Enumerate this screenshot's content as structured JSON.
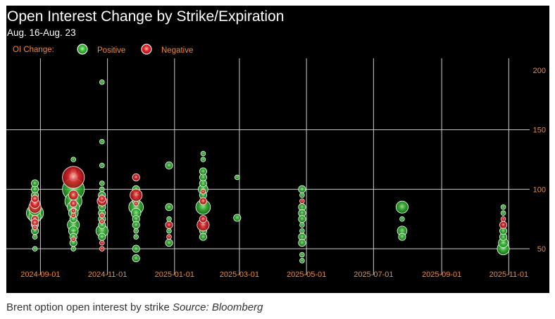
{
  "caption": {
    "text": "Brent option open interest by strike",
    "source": "Source: Bloomberg"
  },
  "chart_data": {
    "type": "scatter",
    "title": "Open Interest Change by Strike/Expiration",
    "subtitle": "Aug. 16-Aug. 23",
    "legend": {
      "label": "OI Change:",
      "placement": "top-left",
      "entries": [
        {
          "name": "Positive",
          "color": "#3fbf3f"
        },
        {
          "name": "Negative",
          "color": "#e8282e"
        }
      ]
    },
    "x_axis": {
      "type": "date",
      "ticks": [
        "2024-09-01",
        "2024-11-01",
        "2025-01-01",
        "2025-03-01",
        "2025-05-01",
        "2025-07-01",
        "2025-09-01",
        "2025-11-01"
      ],
      "range": [
        "2024-08-01",
        "2025-11-20"
      ]
    },
    "y_axis": {
      "ticks": [
        50,
        100,
        150,
        200
      ],
      "range": [
        27,
        210
      ],
      "position": "right"
    },
    "grid": true,
    "colors": {
      "background": "#000000",
      "grid": "#cccccc",
      "labels": "#f08a3c"
    },
    "series": [
      {
        "name": "Positive",
        "points": [
          {
            "x": "2024-08-27",
            "y": 80,
            "size": 3
          },
          {
            "x": "2024-08-27",
            "y": 77,
            "size": 2
          },
          {
            "x": "2024-08-27",
            "y": 83,
            "size": 2
          },
          {
            "x": "2024-08-27",
            "y": 90,
            "size": 1
          },
          {
            "x": "2024-08-27",
            "y": 95,
            "size": 1
          },
          {
            "x": "2024-08-27",
            "y": 100,
            "size": 1
          },
          {
            "x": "2024-08-27",
            "y": 105,
            "size": 1
          },
          {
            "x": "2024-08-27",
            "y": 70,
            "size": 1
          },
          {
            "x": "2024-08-27",
            "y": 65,
            "size": 1
          },
          {
            "x": "2024-08-27",
            "y": 60,
            "size": 0.5
          },
          {
            "x": "2024-08-27",
            "y": 50,
            "size": 0.5
          },
          {
            "x": "2024-10-01",
            "y": 100,
            "size": 4
          },
          {
            "x": "2024-10-01",
            "y": 90,
            "size": 3
          },
          {
            "x": "2024-10-01",
            "y": 85,
            "size": 2
          },
          {
            "x": "2024-10-01",
            "y": 80,
            "size": 1.5
          },
          {
            "x": "2024-10-01",
            "y": 75,
            "size": 1
          },
          {
            "x": "2024-10-01",
            "y": 70,
            "size": 2
          },
          {
            "x": "2024-10-01",
            "y": 65,
            "size": 1.5
          },
          {
            "x": "2024-10-01",
            "y": 60,
            "size": 1
          },
          {
            "x": "2024-10-01",
            "y": 55,
            "size": 1
          },
          {
            "x": "2024-10-01",
            "y": 50,
            "size": 0.5
          },
          {
            "x": "2024-10-01",
            "y": 110,
            "size": 1
          },
          {
            "x": "2024-10-01",
            "y": 115,
            "size": 0.5
          },
          {
            "x": "2024-10-01",
            "y": 125,
            "size": 0.5
          },
          {
            "x": "2024-10-27",
            "y": 65,
            "size": 2
          },
          {
            "x": "2024-10-27",
            "y": 70,
            "size": 1
          },
          {
            "x": "2024-10-27",
            "y": 60,
            "size": 1
          },
          {
            "x": "2024-10-27",
            "y": 75,
            "size": 1
          },
          {
            "x": "2024-10-27",
            "y": 80,
            "size": 1
          },
          {
            "x": "2024-10-27",
            "y": 85,
            "size": 1
          },
          {
            "x": "2024-10-27",
            "y": 95,
            "size": 1
          },
          {
            "x": "2024-10-27",
            "y": 100,
            "size": 0.5
          },
          {
            "x": "2024-10-27",
            "y": 105,
            "size": 0.5
          },
          {
            "x": "2024-10-27",
            "y": 120,
            "size": 0.5
          },
          {
            "x": "2024-10-27",
            "y": 140,
            "size": 0.5
          },
          {
            "x": "2024-10-27",
            "y": 190,
            "size": 0.5
          },
          {
            "x": "2024-11-27",
            "y": 85,
            "size": 2.5
          },
          {
            "x": "2024-11-27",
            "y": 80,
            "size": 1.5
          },
          {
            "x": "2024-11-27",
            "y": 75,
            "size": 1
          },
          {
            "x": "2024-11-27",
            "y": 70,
            "size": 1
          },
          {
            "x": "2024-11-27",
            "y": 65,
            "size": 0.5
          },
          {
            "x": "2024-11-27",
            "y": 60,
            "size": 0.5
          },
          {
            "x": "2024-11-27",
            "y": 50,
            "size": 1
          },
          {
            "x": "2024-11-27",
            "y": 42,
            "size": 1
          },
          {
            "x": "2024-11-27",
            "y": 100,
            "size": 1
          },
          {
            "x": "2024-11-27",
            "y": 90,
            "size": 1
          },
          {
            "x": "2024-12-27",
            "y": 120,
            "size": 1
          },
          {
            "x": "2024-12-27",
            "y": 85,
            "size": 1
          },
          {
            "x": "2024-12-27",
            "y": 75,
            "size": 0.5
          },
          {
            "x": "2024-12-27",
            "y": 65,
            "size": 0.5
          },
          {
            "x": "2024-12-27",
            "y": 55,
            "size": 1
          },
          {
            "x": "2025-01-27",
            "y": 85,
            "size": 2.5
          },
          {
            "x": "2025-01-27",
            "y": 100,
            "size": 1.5
          },
          {
            "x": "2025-01-27",
            "y": 95,
            "size": 1
          },
          {
            "x": "2025-01-27",
            "y": 105,
            "size": 1
          },
          {
            "x": "2025-01-27",
            "y": 110,
            "size": 1
          },
          {
            "x": "2025-01-27",
            "y": 115,
            "size": 1
          },
          {
            "x": "2025-01-27",
            "y": 125,
            "size": 0.5
          },
          {
            "x": "2025-01-27",
            "y": 130,
            "size": 0.5
          },
          {
            "x": "2025-01-27",
            "y": 65,
            "size": 1
          },
          {
            "x": "2025-01-27",
            "y": 60,
            "size": 1
          },
          {
            "x": "2025-02-27",
            "y": 110,
            "size": 0.5
          },
          {
            "x": "2025-02-27",
            "y": 76,
            "size": 1
          },
          {
            "x": "2025-04-27",
            "y": 100,
            "size": 1
          },
          {
            "x": "2025-04-27",
            "y": 95,
            "size": 0.5
          },
          {
            "x": "2025-04-27",
            "y": 85,
            "size": 1
          },
          {
            "x": "2025-04-27",
            "y": 80,
            "size": 1
          },
          {
            "x": "2025-04-27",
            "y": 75,
            "size": 1
          },
          {
            "x": "2025-04-27",
            "y": 70,
            "size": 0.5
          },
          {
            "x": "2025-04-27",
            "y": 65,
            "size": 0.5
          },
          {
            "x": "2025-04-27",
            "y": 60,
            "size": 1
          },
          {
            "x": "2025-04-27",
            "y": 55,
            "size": 1
          },
          {
            "x": "2025-04-27",
            "y": 45,
            "size": 0.5
          },
          {
            "x": "2025-04-27",
            "y": 40,
            "size": 0.5
          },
          {
            "x": "2025-07-27",
            "y": 85,
            "size": 2
          },
          {
            "x": "2025-07-27",
            "y": 75,
            "size": 0.5
          },
          {
            "x": "2025-07-27",
            "y": 65,
            "size": 1.5
          },
          {
            "x": "2025-07-27",
            "y": 60,
            "size": 1
          },
          {
            "x": "2025-10-27",
            "y": 50,
            "size": 2
          },
          {
            "x": "2025-10-27",
            "y": 55,
            "size": 1.5
          },
          {
            "x": "2025-10-27",
            "y": 60,
            "size": 1
          },
          {
            "x": "2025-10-27",
            "y": 65,
            "size": 1
          },
          {
            "x": "2025-10-27",
            "y": 80,
            "size": 0.5
          },
          {
            "x": "2025-10-27",
            "y": 85,
            "size": 0.5
          }
        ]
      },
      {
        "name": "Negative",
        "points": [
          {
            "x": "2024-08-27",
            "y": 85,
            "size": 2
          },
          {
            "x": "2024-08-27",
            "y": 88,
            "size": 1.5
          },
          {
            "x": "2024-08-27",
            "y": 92,
            "size": 1
          },
          {
            "x": "2024-08-27",
            "y": 75,
            "size": 1
          },
          {
            "x": "2024-08-27",
            "y": 72,
            "size": 1
          },
          {
            "x": "2024-08-27",
            "y": 68,
            "size": 0.5
          },
          {
            "x": "2024-10-01",
            "y": 110,
            "size": 4
          },
          {
            "x": "2024-10-01",
            "y": 95,
            "size": 1.5
          },
          {
            "x": "2024-10-01",
            "y": 88,
            "size": 1
          },
          {
            "x": "2024-10-01",
            "y": 82,
            "size": 0.5
          },
          {
            "x": "2024-10-01",
            "y": 78,
            "size": 0.5
          },
          {
            "x": "2024-10-01",
            "y": 58,
            "size": 0.5
          },
          {
            "x": "2024-10-27",
            "y": 90,
            "size": 1.5
          },
          {
            "x": "2024-10-27",
            "y": 92,
            "size": 1
          },
          {
            "x": "2024-10-27",
            "y": 78,
            "size": 0.5
          },
          {
            "x": "2024-10-27",
            "y": 73,
            "size": 0.5
          },
          {
            "x": "2024-10-27",
            "y": 55,
            "size": 0.5
          },
          {
            "x": "2024-10-27",
            "y": 50,
            "size": 0.5
          },
          {
            "x": "2024-11-27",
            "y": 95,
            "size": 2
          },
          {
            "x": "2024-11-27",
            "y": 110,
            "size": 1
          },
          {
            "x": "2024-11-27",
            "y": 88,
            "size": 0.5
          },
          {
            "x": "2024-12-27",
            "y": 70,
            "size": 1
          },
          {
            "x": "2024-12-27",
            "y": 60,
            "size": 0.5
          },
          {
            "x": "2025-01-27",
            "y": 70,
            "size": 2
          },
          {
            "x": "2025-01-27",
            "y": 75,
            "size": 1
          },
          {
            "x": "2025-01-27",
            "y": 90,
            "size": 1
          },
          {
            "x": "2025-01-27",
            "y": 98,
            "size": 0.5
          },
          {
            "x": "2025-04-27",
            "y": 90,
            "size": 0.5
          },
          {
            "x": "2025-10-27",
            "y": 70,
            "size": 1
          },
          {
            "x": "2025-10-27",
            "y": 75,
            "size": 0.5
          }
        ]
      }
    ]
  }
}
